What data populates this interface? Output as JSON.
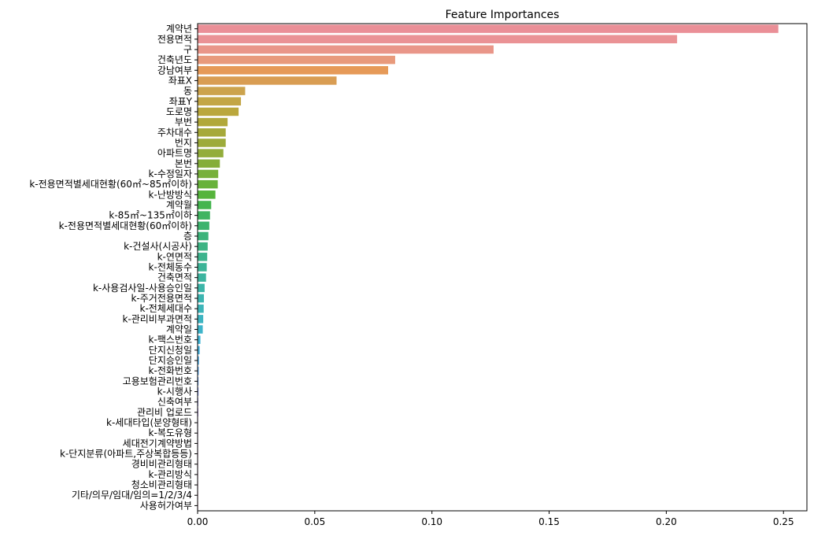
{
  "chart_data": {
    "type": "bar",
    "orientation": "horizontal",
    "title": "Feature Importances",
    "xlabel": "",
    "ylabel": "",
    "xlim": [
      0,
      0.26
    ],
    "x_ticks": [
      0.0,
      0.05,
      0.1,
      0.15,
      0.2,
      0.25
    ],
    "x_tick_labels": [
      "0.00",
      "0.05",
      "0.10",
      "0.15",
      "0.20",
      "0.25"
    ],
    "grid": false,
    "legend": "none",
    "categories": [
      "계약년",
      "전용면적",
      "구",
      "건축년도",
      "강남여부",
      "좌표X",
      "동",
      "좌표Y",
      "도로명",
      "부번",
      "주차대수",
      "번지",
      "아파트명",
      "본번",
      "k-수정일자",
      "k-전용면적별세대현황(60㎡~85㎡이하)",
      "k-난방방식",
      "계약월",
      "k-85㎡~135㎡이하",
      "k-전용면적별세대현황(60㎡이하)",
      "층",
      "k-건설사(시공사)",
      "k-연면적",
      "k-전체동수",
      "건축면적",
      "k-사용검사일-사용승인일",
      "k-주거전용면적",
      "k-전체세대수",
      "k-관리비부과면적",
      "계약일",
      "k-팩스번호",
      "단지신청일",
      "단지승인일",
      "k-전화번호",
      "고용보험관리번호",
      "k-시행사",
      "신축여부",
      "관리비 업로드",
      "k-세대타입(분양형태)",
      "k-복도유형",
      "세대전기계약방법",
      "k-단지분류(아파트,주상복합등등)",
      "경비비관리형태",
      "k-관리방식",
      "청소비관리형태",
      "기타/의무/임대/임의=1/2/3/4",
      "사용허가여부"
    ],
    "values": [
      0.2478,
      0.2046,
      0.1263,
      0.0843,
      0.0813,
      0.0593,
      0.0203,
      0.0185,
      0.0175,
      0.0128,
      0.012,
      0.012,
      0.011,
      0.0095,
      0.0088,
      0.0086,
      0.0076,
      0.0058,
      0.0053,
      0.005,
      0.0046,
      0.0043,
      0.0041,
      0.0039,
      0.0036,
      0.003,
      0.0027,
      0.0026,
      0.0024,
      0.0022,
      0.0012,
      0.0009,
      0.0006,
      0.0005,
      0.0004,
      0.0004,
      0.0003,
      0.0003,
      0.0002,
      0.0002,
      0.0002,
      0.0001,
      0.0001,
      0.0001,
      0.0001,
      0.0001,
      0.0001
    ],
    "colors": [
      "#ea8f97",
      "#ea9295",
      "#e99689",
      "#e89a7c",
      "#e69a58",
      "#d99d53",
      "#cca34d",
      "#c3a645",
      "#baa73c",
      "#b1a83a",
      "#a6a93a",
      "#9dab3a",
      "#93ad3b",
      "#85ae3a",
      "#77b03b",
      "#68b23b",
      "#56b43c",
      "#44b54e",
      "#3fb461",
      "#3db36e",
      "#3cb37a",
      "#3db383",
      "#3db38d",
      "#3cb497",
      "#3cb49f",
      "#3cb5a8",
      "#3cb5b1",
      "#3db5b9",
      "#3db4c1",
      "#3db4ca",
      "#3fb3d5",
      "#45b1de",
      "#52aee6",
      "#5eaaee",
      "#73a4f0",
      "#8a9df2",
      "#9f96f3",
      "#b38ef3",
      "#c586f2",
      "#d27ef0",
      "#dc79e6",
      "#e576d9",
      "#e873cd",
      "#ea71c2",
      "#eb70b6",
      "#ec71a9",
      "#ec739d"
    ]
  }
}
